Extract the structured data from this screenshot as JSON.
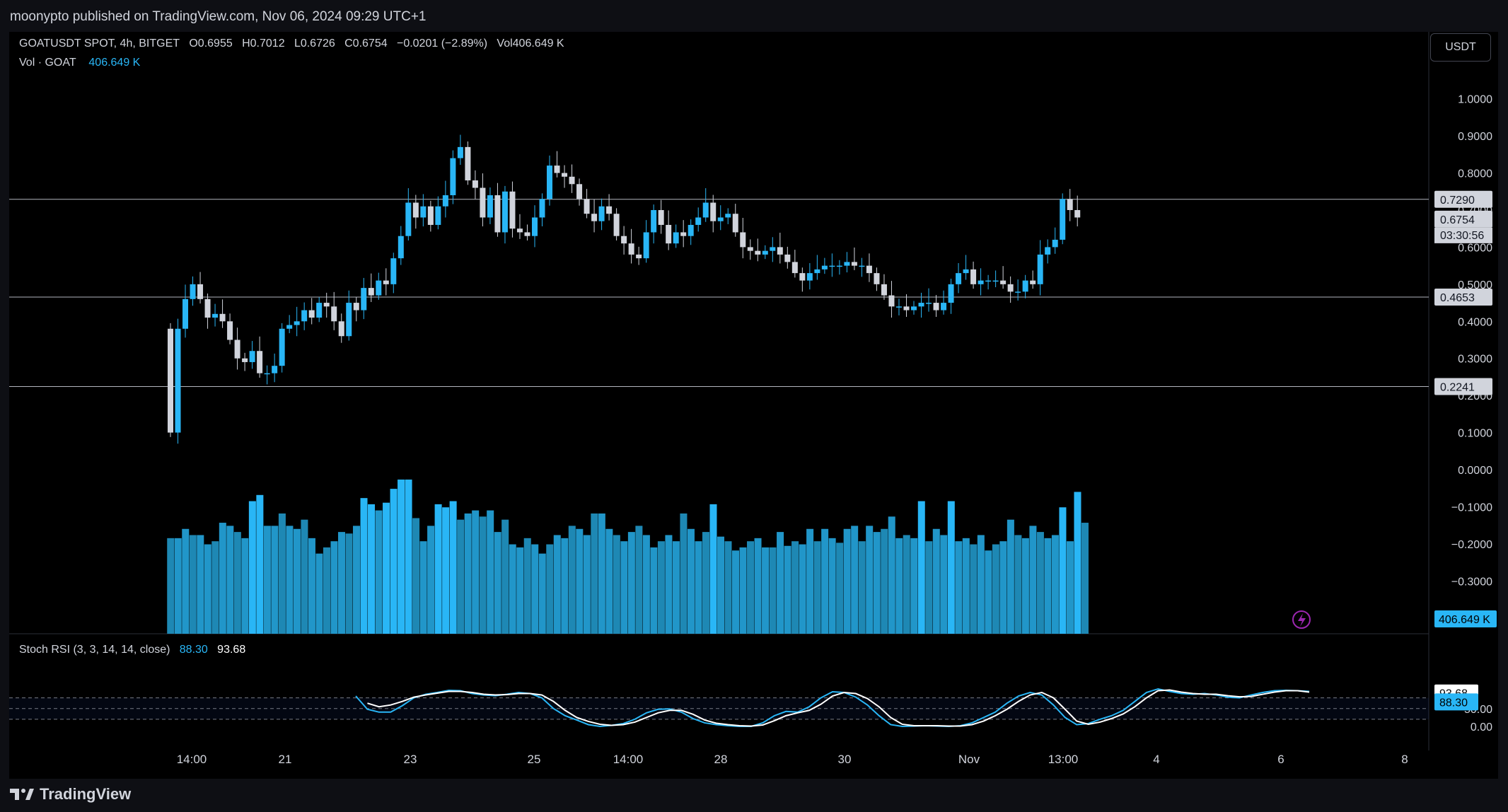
{
  "header": {
    "publisher_line": "moonypto published on TradingView.com, Nov 06, 2024 09:29 UTC+1"
  },
  "legend": {
    "symbol": "GOATUSDT SPOT, 4h, BITGET",
    "open": "O0.6955",
    "high": "H0.7012",
    "low": "L0.6726",
    "close": "C0.6754",
    "change": "−0.0201 (−2.89%)",
    "volume": "Vol406.649 K",
    "vol_label": "Vol · GOAT",
    "vol_value": "406.649 K"
  },
  "currency_button": "USDT",
  "brand": "TradingView",
  "stoch_legend": {
    "label": "Stoch RSI (3, 3, 14, 14, close)",
    "k": "88.30",
    "d": "93.68"
  },
  "colors": {
    "up": "#29b6f6",
    "down": "#d1d4dc",
    "volume": "#1e88b4",
    "stoch_k": "#29b6f6",
    "stoch_d": "#ffffff",
    "background": "#000000"
  },
  "icons": {
    "replay": "lightning-icon",
    "brand_logo": "tradingview-logo-icon"
  },
  "chart_data": [
    {
      "type": "candlestick",
      "timeframe": "4h",
      "y_range": [
        -0.35,
        1.05
      ],
      "y_ticks": [
        "1.0000",
        "0.9000",
        "0.8000",
        "0.7000",
        "0.6000",
        "0.5000",
        "0.4000",
        "0.3000",
        "0.2000",
        "0.1000",
        "0.0000",
        "−0.1000",
        "−0.2000",
        "−0.3000"
      ],
      "x_ticks": [
        "14:00",
        "21",
        "23",
        "25",
        "14:00",
        "28",
        "30",
        "Nov",
        "13:00",
        "4",
        "6",
        "8"
      ],
      "horizontal_lines": [
        0.729,
        0.4653,
        0.2241
      ],
      "price_labels": {
        "line_top": "0.7290",
        "last": "0.6754",
        "countdown": "03:30:56",
        "line_mid": "0.4653",
        "line_low": "0.2241"
      },
      "closes": [
        0.1,
        0.38,
        0.46,
        0.5,
        0.46,
        0.41,
        0.42,
        0.4,
        0.35,
        0.3,
        0.29,
        0.32,
        0.26,
        0.26,
        0.28,
        0.38,
        0.39,
        0.4,
        0.43,
        0.41,
        0.45,
        0.44,
        0.4,
        0.36,
        0.45,
        0.43,
        0.49,
        0.47,
        0.51,
        0.5,
        0.57,
        0.63,
        0.72,
        0.68,
        0.71,
        0.66,
        0.71,
        0.74,
        0.84,
        0.87,
        0.78,
        0.76,
        0.68,
        0.74,
        0.64,
        0.75,
        0.65,
        0.64,
        0.63,
        0.68,
        0.73,
        0.82,
        0.8,
        0.79,
        0.77,
        0.73,
        0.69,
        0.67,
        0.71,
        0.69,
        0.63,
        0.61,
        0.58,
        0.57,
        0.64,
        0.7,
        0.66,
        0.61,
        0.64,
        0.63,
        0.66,
        0.68,
        0.72,
        0.67,
        0.68,
        0.69,
        0.64,
        0.6,
        0.59,
        0.58,
        0.59,
        0.6,
        0.58,
        0.56,
        0.53,
        0.51,
        0.53,
        0.54,
        0.55,
        0.55,
        0.55,
        0.56,
        0.55,
        0.55,
        0.53,
        0.5,
        0.47,
        0.44,
        0.44,
        0.43,
        0.44,
        0.45,
        0.45,
        0.43,
        0.45,
        0.5,
        0.53,
        0.54,
        0.5,
        0.51,
        0.51,
        0.51,
        0.5,
        0.48,
        0.48,
        0.51,
        0.5,
        0.58,
        0.6,
        0.62,
        0.73,
        0.7,
        0.68
      ],
      "volume_heights": [
        0.62,
        0.62,
        0.68,
        0.64,
        0.64,
        0.58,
        0.6,
        0.72,
        0.7,
        0.66,
        0.62,
        0.86,
        0.9,
        0.7,
        0.7,
        0.78,
        0.7,
        0.68,
        0.74,
        0.62,
        0.52,
        0.56,
        0.6,
        0.66,
        0.65,
        0.7,
        0.88,
        0.84,
        0.8,
        0.85,
        0.94,
        1.0,
        1.0,
        0.75,
        0.6,
        0.7,
        0.84,
        0.82,
        0.86,
        0.74,
        0.78,
        0.8,
        0.76,
        0.8,
        0.66,
        0.74,
        0.58,
        0.56,
        0.62,
        0.58,
        0.52,
        0.58,
        0.64,
        0.62,
        0.7,
        0.68,
        0.64,
        0.78,
        0.78,
        0.68,
        0.64,
        0.6,
        0.66,
        0.7,
        0.64,
        0.56,
        0.6,
        0.64,
        0.6,
        0.78,
        0.68,
        0.6,
        0.66,
        0.84,
        0.63,
        0.6,
        0.54,
        0.56,
        0.6,
        0.62,
        0.56,
        0.56,
        0.66,
        0.57,
        0.6,
        0.58,
        0.68,
        0.6,
        0.68,
        0.62,
        0.59,
        0.68,
        0.7,
        0.6,
        0.7,
        0.66,
        0.68,
        0.76,
        0.62,
        0.64,
        0.62,
        0.86,
        0.6,
        0.68,
        0.64,
        0.86,
        0.6,
        0.62,
        0.58,
        0.64,
        0.54,
        0.58,
        0.6,
        0.74,
        0.64,
        0.62,
        0.7,
        0.66,
        0.62,
        0.64,
        0.82,
        0.6,
        0.92,
        0.72
      ],
      "stoch_rsi": {
        "label": "Stoch RSI (3, 3, 14, 14, close)",
        "range": [
          -10,
          110
        ],
        "levels": [
          80,
          50,
          20
        ],
        "y_ticks": [
          "93.68",
          "88.30",
          "50.00",
          "0.00"
        ],
        "k_values": [
          0.0,
          0.0,
          0.0,
          0.0,
          0.0,
          0.0,
          0.0,
          0.0,
          0.0,
          0.0,
          0.0,
          0.0,
          0.0,
          0.0,
          0.0,
          0.0,
          0.0,
          0.0,
          0.0,
          0.0,
          0.0,
          0.0,
          0.0,
          0.0,
          0.0,
          0.0,
          0.0,
          0.0,
          0.0,
          0.0,
          0.0,
          0.0,
          0.0,
          0.0,
          0.0,
          0.0,
          0.0,
          0.0,
          0.0,
          0.0,
          0.0,
          0.0,
          0.0,
          0.0,
          0.0,
          0.0,
          0.0,
          0.0,
          0.0,
          0.0,
          0.0,
          0.0,
          0.0,
          0.0,
          0.0,
          0.0,
          0.0,
          0.0,
          0.0,
          0.0,
          0.0,
          0.0,
          0.0,
          0.0,
          0.0,
          0.0,
          0.0,
          0.0,
          0.0,
          0.0,
          0.0,
          0.0,
          0.0,
          0.0,
          0.0,
          0.0,
          0.0,
          0.0,
          0.0,
          0.0,
          0.0,
          0.0,
          0.0,
          0.0,
          0.0,
          0.0,
          0.0,
          0.0,
          0.0,
          0.0,
          0.0,
          0.0,
          0.0,
          0.0,
          0.0,
          0.0,
          0.0,
          0.0,
          0.0,
          0.0,
          0.0,
          0.0,
          0.0,
          0.0,
          0.0,
          0.0,
          0.0,
          0.0,
          0.0,
          0.0,
          0.0,
          0.0,
          0.0,
          0.0,
          0.0,
          0.0,
          0.0,
          0.0,
          0.0,
          0.0,
          0.0,
          0.0,
          0.0
        ],
        "k_segments": [
          [
            18,
            85
          ],
          [
            19,
            48
          ],
          [
            20,
            40
          ],
          [
            21,
            40
          ],
          [
            22,
            58
          ],
          [
            23,
            80
          ],
          [
            24,
            90
          ],
          [
            25,
            95
          ],
          [
            26,
            101
          ],
          [
            27,
            100
          ],
          [
            28,
            92
          ],
          [
            29,
            88
          ],
          [
            30,
            86
          ],
          [
            31,
            90
          ],
          [
            32,
            95
          ],
          [
            33,
            92
          ],
          [
            34,
            80
          ],
          [
            35,
            50
          ],
          [
            36,
            30
          ],
          [
            37,
            18
          ],
          [
            38,
            5
          ],
          [
            39,
            0
          ],
          [
            40,
            3
          ],
          [
            41,
            8
          ],
          [
            42,
            20
          ],
          [
            43,
            38
          ],
          [
            44,
            48
          ],
          [
            45,
            49
          ],
          [
            46,
            40
          ],
          [
            47,
            22
          ],
          [
            48,
            10
          ],
          [
            49,
            5
          ],
          [
            50,
            2
          ],
          [
            51,
            0
          ],
          [
            52,
            0
          ],
          [
            53,
            10
          ],
          [
            54,
            30
          ],
          [
            55,
            42
          ],
          [
            56,
            40
          ],
          [
            57,
            55
          ],
          [
            58,
            80
          ],
          [
            59,
            97
          ],
          [
            60,
            95
          ],
          [
            61,
            82
          ],
          [
            62,
            60
          ],
          [
            63,
            30
          ],
          [
            64,
            5
          ],
          [
            65,
            0
          ],
          [
            66,
            1
          ],
          [
            67,
            2
          ],
          [
            68,
            1
          ],
          [
            69,
            0
          ],
          [
            70,
            2
          ],
          [
            71,
            10
          ],
          [
            72,
            25
          ],
          [
            73,
            40
          ],
          [
            74,
            65
          ],
          [
            75,
            85
          ],
          [
            76,
            95
          ],
          [
            77,
            88
          ],
          [
            78,
            60
          ],
          [
            79,
            25
          ],
          [
            80,
            5
          ],
          [
            81,
            8
          ],
          [
            82,
            20
          ],
          [
            83,
            30
          ],
          [
            84,
            45
          ],
          [
            85,
            70
          ],
          [
            86,
            95
          ],
          [
            87,
            105
          ],
          [
            88,
            98
          ],
          [
            89,
            92
          ],
          [
            90,
            90
          ],
          [
            91,
            92
          ],
          [
            92,
            88
          ],
          [
            93,
            82
          ],
          [
            94,
            80
          ],
          [
            95,
            88
          ],
          [
            96,
            95
          ],
          [
            97,
            100
          ],
          [
            98,
            101
          ],
          [
            99,
            100
          ],
          [
            100,
            98
          ]
        ],
        "d_segments": [
          [
            19,
            65
          ],
          [
            20,
            55
          ],
          [
            21,
            60
          ],
          [
            22,
            70
          ],
          [
            23,
            82
          ],
          [
            24,
            88
          ],
          [
            25,
            93
          ],
          [
            26,
            98
          ],
          [
            27,
            98
          ],
          [
            28,
            95
          ],
          [
            29,
            90
          ],
          [
            30,
            88
          ],
          [
            31,
            89
          ],
          [
            32,
            92
          ],
          [
            33,
            92
          ],
          [
            34,
            88
          ],
          [
            35,
            70
          ],
          [
            36,
            45
          ],
          [
            37,
            25
          ],
          [
            38,
            14
          ],
          [
            39,
            6
          ],
          [
            40,
            3
          ],
          [
            41,
            5
          ],
          [
            42,
            12
          ],
          [
            43,
            25
          ],
          [
            44,
            38
          ],
          [
            45,
            45
          ],
          [
            46,
            45
          ],
          [
            47,
            34
          ],
          [
            48,
            18
          ],
          [
            49,
            9
          ],
          [
            50,
            5
          ],
          [
            51,
            2
          ],
          [
            52,
            1
          ],
          [
            53,
            4
          ],
          [
            54,
            16
          ],
          [
            55,
            30
          ],
          [
            56,
            38
          ],
          [
            57,
            45
          ],
          [
            58,
            62
          ],
          [
            59,
            85
          ],
          [
            60,
            95
          ],
          [
            61,
            92
          ],
          [
            62,
            78
          ],
          [
            63,
            55
          ],
          [
            64,
            25
          ],
          [
            65,
            6
          ],
          [
            66,
            2
          ],
          [
            67,
            2
          ],
          [
            68,
            2
          ],
          [
            69,
            1
          ],
          [
            70,
            1
          ],
          [
            71,
            5
          ],
          [
            72,
            15
          ],
          [
            73,
            30
          ],
          [
            74,
            48
          ],
          [
            75,
            70
          ],
          [
            76,
            88
          ],
          [
            77,
            95
          ],
          [
            78,
            80
          ],
          [
            79,
            48
          ],
          [
            80,
            15
          ],
          [
            81,
            6
          ],
          [
            82,
            12
          ],
          [
            83,
            22
          ],
          [
            84,
            35
          ],
          [
            85,
            55
          ],
          [
            86,
            80
          ],
          [
            87,
            100
          ],
          [
            88,
            102
          ],
          [
            89,
            96
          ],
          [
            90,
            92
          ],
          [
            91,
            90
          ],
          [
            92,
            90
          ],
          [
            93,
            86
          ],
          [
            94,
            83
          ],
          [
            95,
            84
          ],
          [
            96,
            90
          ],
          [
            97,
            96
          ],
          [
            98,
            100
          ],
          [
            99,
            100
          ],
          [
            100,
            96
          ]
        ]
      }
    }
  ]
}
